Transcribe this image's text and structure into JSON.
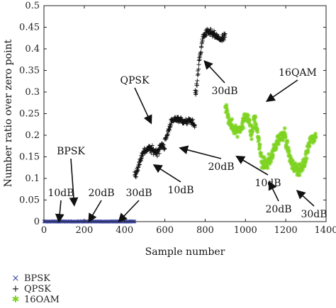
{
  "chart_data": {
    "type": "scatter",
    "xlabel": "Sample number",
    "ylabel": "Number ratio over zero point",
    "xlim": [
      0,
      1400
    ],
    "ylim": [
      0,
      0.5
    ],
    "xticks": [
      0,
      200,
      400,
      600,
      800,
      1000,
      1200,
      1400
    ],
    "yticks": [
      0,
      0.05,
      0.1,
      0.15,
      0.2,
      0.25,
      0.3,
      0.35,
      0.4,
      0.45,
      0.5
    ],
    "xtick_labels": [
      "0",
      "200",
      "400",
      "600",
      "800",
      "1000",
      "1200",
      "1400"
    ],
    "ytick_labels": [
      "0",
      "0.05",
      "0.1",
      "0.15",
      "0.2",
      "0.25",
      "0.3",
      "0.35",
      "0.4",
      "0.45",
      "0.5"
    ],
    "series": [
      {
        "name": "BPSK",
        "marker": "x",
        "color": "#3f48a8",
        "segments": [
          {
            "x_range": [
              0,
              150
            ],
            "y_mean": 0.0,
            "y_spread": 0.002
          },
          {
            "x_range": [
              150,
              300
            ],
            "y_mean": 0.0,
            "y_spread": 0.002
          },
          {
            "x_range": [
              300,
              450
            ],
            "y_mean": 0.0,
            "y_spread": 0.002
          }
        ]
      },
      {
        "name": "QPSK",
        "marker": "+",
        "color": "#111111",
        "segments": [
          {
            "x_range": [
              450,
              600
            ],
            "y_path": [
              [
                455,
                0.11
              ],
              [
                470,
                0.13
              ],
              [
                490,
                0.16
              ],
              [
                520,
                0.17
              ],
              [
                560,
                0.16
              ],
              [
                590,
                0.18
              ],
              [
                600,
                0.17
              ]
            ],
            "y_spread": 0.014
          },
          {
            "x_range": [
              600,
              750
            ],
            "y_path": [
              [
                605,
                0.19
              ],
              [
                630,
                0.23
              ],
              [
                660,
                0.24
              ],
              [
                700,
                0.23
              ],
              [
                730,
                0.235
              ],
              [
                750,
                0.22
              ]
            ],
            "y_spread": 0.012
          },
          {
            "x_range": [
              750,
              900
            ],
            "y_path": [
              [
                755,
                0.3
              ],
              [
                770,
                0.37
              ],
              [
                790,
                0.43
              ],
              [
                820,
                0.44
              ],
              [
                850,
                0.43
              ],
              [
                880,
                0.42
              ],
              [
                900,
                0.43
              ]
            ],
            "y_spread": 0.014
          }
        ]
      },
      {
        "name": "16OAM",
        "marker": "*",
        "color": "#7ed321",
        "segments": [
          {
            "x_range": [
              900,
              1050
            ],
            "y_path": [
              [
                905,
                0.26
              ],
              [
                930,
                0.22
              ],
              [
                960,
                0.21
              ],
              [
                990,
                0.23
              ],
              [
                1010,
                0.25
              ],
              [
                1030,
                0.2
              ],
              [
                1050,
                0.25
              ]
            ],
            "y_spread": 0.025
          },
          {
            "x_range": [
              1050,
              1200
            ],
            "y_path": [
              [
                1055,
                0.22
              ],
              [
                1080,
                0.14
              ],
              [
                1100,
                0.13
              ],
              [
                1130,
                0.15
              ],
              [
                1160,
                0.19
              ],
              [
                1190,
                0.2
              ],
              [
                1200,
                0.21
              ]
            ],
            "y_spread": 0.022
          },
          {
            "x_range": [
              1200,
              1350
            ],
            "y_path": [
              [
                1205,
                0.18
              ],
              [
                1230,
                0.13
              ],
              [
                1260,
                0.12
              ],
              [
                1290,
                0.13
              ],
              [
                1320,
                0.19
              ],
              [
                1350,
                0.2
              ]
            ],
            "y_spread": 0.022
          }
        ]
      }
    ],
    "annotations": [
      {
        "text": "BPSK",
        "arrow_to": [
          150,
          0.04
        ]
      },
      {
        "text": "10dB",
        "arrow_to": [
          75,
          0.002
        ]
      },
      {
        "text": "20dB",
        "arrow_to": [
          225,
          0.002
        ]
      },
      {
        "text": "30dB",
        "arrow_to": [
          375,
          0.002
        ]
      },
      {
        "text": "QPSK",
        "arrow_to": [
          530,
          0.23
        ]
      },
      {
        "text": "10dB",
        "arrow_to": [
          550,
          0.13
        ]
      },
      {
        "text": "20dB",
        "arrow_to": [
          680,
          0.17
        ]
      },
      {
        "text": "30dB",
        "arrow_to": [
          800,
          0.37
        ]
      },
      {
        "text": "16QAM",
        "arrow_to": [
          1110,
          0.28
        ]
      },
      {
        "text": "10dB",
        "arrow_to": [
          960,
          0.15
        ]
      },
      {
        "text": "20dB",
        "arrow_to": [
          1120,
          0.09
        ]
      },
      {
        "text": "30dB",
        "arrow_to": [
          1260,
          0.07
        ]
      }
    ],
    "legend": {
      "position": "bottom-left"
    },
    "grid": false
  }
}
